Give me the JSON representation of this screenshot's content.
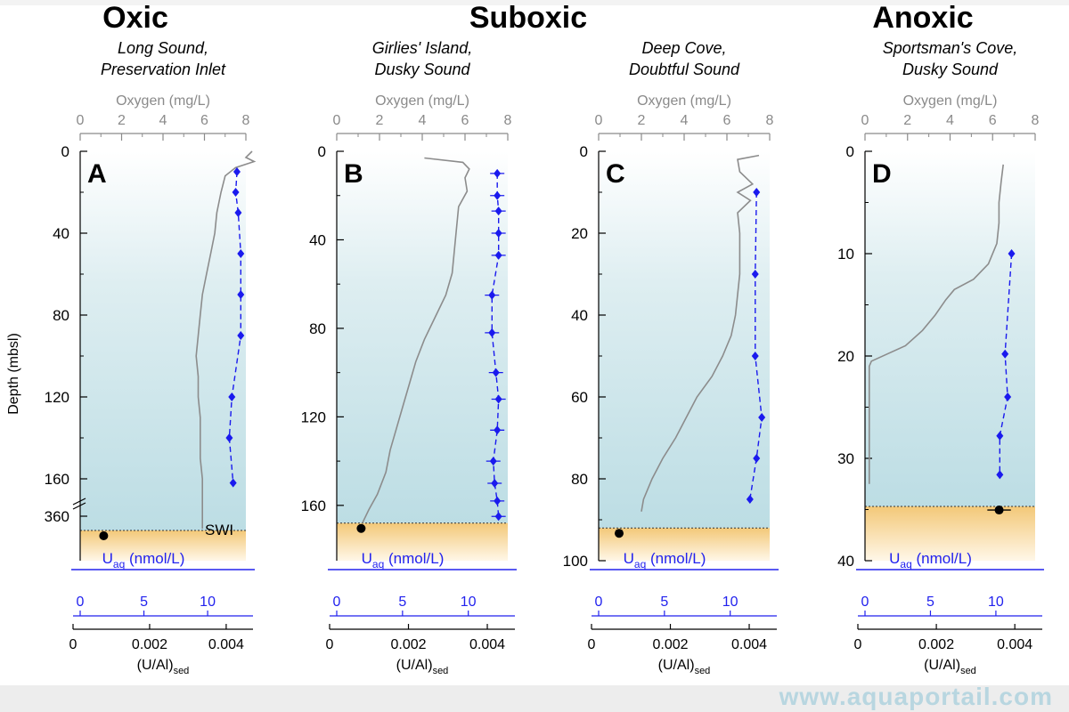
{
  "headings": {
    "oxic": "Oxic",
    "suboxic": "Suboxic",
    "anoxic": "Anoxic"
  },
  "depth_axis_label": "Depth (mbsl)",
  "swi_label": "SWI",
  "watermark": "www.aquaportail.com",
  "colors": {
    "water": "#c9e4ea",
    "sediment": "#f7d79a",
    "uranium": "#1a1aee",
    "oxygen": "#8c8c8c",
    "axis_grey": "#8a8a8a",
    "axis_blue": "#2222ee"
  },
  "chart_data": [
    {
      "panel": "A",
      "type": "line",
      "site": [
        "Long Sound,",
        "Preservation Inlet"
      ],
      "oxygen_axis": {
        "label": "Oxygen (mg/L)",
        "range": [
          0,
          8
        ],
        "ticks": [
          "0",
          "2",
          "4",
          "6",
          "8"
        ]
      },
      "depth_axis": {
        "range": [
          0,
          168
        ],
        "ticks": [
          "0",
          "40",
          "80",
          "120",
          "160"
        ],
        "break_tick": "360"
      },
      "uaq_axis": {
        "label": "U",
        "label_sub": "aq",
        "label_unit": " (nmol/L)",
        "range": [
          0,
          13
        ],
        "ticks": [
          "0",
          "5",
          "10"
        ]
      },
      "used_axis": {
        "label": "(U/Al)",
        "label_sub": "sed",
        "range": [
          0,
          0.0047
        ],
        "ticks": [
          "0",
          "0.002",
          "0.004"
        ]
      },
      "swi_shown": true,
      "oxygen_profile": {
        "depth": [
          0,
          3,
          5,
          8,
          12,
          20,
          30,
          40,
          50,
          60,
          70,
          80,
          90,
          100,
          110,
          120,
          130,
          140,
          150,
          160,
          165
        ],
        "oxygen": [
          8.3,
          8.0,
          8.4,
          7.5,
          7.0,
          6.8,
          6.6,
          6.5,
          6.3,
          6.1,
          5.9,
          5.8,
          5.7,
          5.6,
          5.7,
          5.7,
          5.8,
          5.8,
          5.8,
          5.9,
          5.9
        ]
      },
      "deep_oxygen": 5.9,
      "u_profile": {
        "depth": [
          10,
          20,
          30,
          50,
          70,
          90,
          120,
          140,
          162
        ],
        "u": [
          12.3,
          12.2,
          12.4,
          12.6,
          12.6,
          12.6,
          11.9,
          11.7,
          12.0
        ]
      },
      "sediment_point": 0.0008
    },
    {
      "panel": "B",
      "type": "line",
      "site": [
        "Girlies' Island,",
        "Dusky Sound"
      ],
      "oxygen_axis": {
        "label": "Oxygen (mg/L)",
        "range": [
          0,
          8
        ],
        "ticks": [
          "0",
          "2",
          "4",
          "6",
          "8"
        ]
      },
      "depth_axis": {
        "range": [
          0,
          185
        ],
        "ticks": [
          "0",
          "40",
          "80",
          "120",
          "160"
        ]
      },
      "uaq_axis": {
        "label": "U",
        "label_sub": "aq",
        "label_unit": " (nmol/L)",
        "range": [
          0,
          13
        ],
        "ticks": [
          "0",
          "5",
          "10"
        ]
      },
      "used_axis": {
        "label": "(U/Al)",
        "label_sub": "sed",
        "range": [
          0,
          0.0047
        ],
        "ticks": [
          "0",
          "0.002",
          "0.004"
        ]
      },
      "swi_depth": 168,
      "oxygen_profile": {
        "depth": [
          3,
          5,
          8,
          12,
          18,
          25,
          35,
          45,
          55,
          65,
          75,
          85,
          95,
          105,
          115,
          125,
          135,
          145,
          155,
          162,
          168
        ],
        "oxygen": [
          4.1,
          5.9,
          6.2,
          6.0,
          6.1,
          5.7,
          5.6,
          5.5,
          5.4,
          5.1,
          4.6,
          4.1,
          3.7,
          3.4,
          3.1,
          2.8,
          2.5,
          2.3,
          1.9,
          1.5,
          1.2
        ]
      },
      "u_profile": {
        "depth": [
          10,
          20,
          27,
          37,
          47,
          65,
          82,
          100,
          112,
          126,
          140,
          150,
          158,
          165
        ],
        "u": [
          12.2,
          12.2,
          12.3,
          12.3,
          12.3,
          11.8,
          11.8,
          12.1,
          12.3,
          12.2,
          11.9,
          12.0,
          12.2,
          12.3
        ]
      },
      "sediment_point": 0.0008
    },
    {
      "panel": "C",
      "type": "line",
      "site": [
        "Deep Cove,",
        "Doubtful Sound"
      ],
      "oxygen_axis": {
        "label": "Oxygen (mg/L)",
        "range": [
          0,
          8
        ],
        "ticks": [
          "0",
          "2",
          "4",
          "6",
          "8"
        ]
      },
      "depth_axis": {
        "range": [
          0,
          100
        ],
        "ticks": [
          "0",
          "20",
          "40",
          "60",
          "80",
          "100"
        ]
      },
      "uaq_axis": {
        "label": "U",
        "label_sub": "aq",
        "label_unit": " (nmol/L)",
        "range": [
          0,
          13
        ],
        "ticks": [
          "0",
          "5",
          "10"
        ]
      },
      "used_axis": {
        "label": "(U/Al)",
        "label_sub": "sed",
        "range": [
          0,
          0.0047
        ],
        "ticks": [
          "0",
          "0.002",
          "0.004"
        ]
      },
      "swi_depth": 92,
      "oxygen_profile": {
        "depth": [
          1,
          2,
          5,
          8,
          10,
          12,
          15,
          20,
          25,
          30,
          35,
          40,
          45,
          50,
          55,
          60,
          65,
          70,
          75,
          80,
          85,
          88
        ],
        "oxygen": [
          7.5,
          6.5,
          6.6,
          7.2,
          6.5,
          7.1,
          6.5,
          6.6,
          6.6,
          6.6,
          6.5,
          6.4,
          6.2,
          5.8,
          5.3,
          4.6,
          4.1,
          3.6,
          3.0,
          2.5,
          2.1,
          2.0
        ]
      },
      "u_profile": {
        "depth": [
          10,
          30,
          50,
          65,
          75,
          85
        ],
        "u": [
          12.0,
          11.9,
          11.9,
          12.4,
          12.0,
          11.5
        ]
      },
      "sediment_point": 0.0007
    },
    {
      "panel": "D",
      "type": "line",
      "site": [
        "Sportsman's Cove,",
        "Dusky Sound"
      ],
      "oxygen_axis": {
        "label": "Oxygen (mg/L)",
        "range": [
          0,
          8
        ],
        "ticks": [
          "0",
          "2",
          "4",
          "6",
          "8"
        ]
      },
      "depth_axis": {
        "range": [
          0,
          40
        ],
        "ticks": [
          "0",
          "10",
          "20",
          "30",
          "40"
        ]
      },
      "uaq_axis": {
        "label": "U",
        "label_sub": "aq",
        "label_unit": " (nmol/L)",
        "range": [
          0,
          13
        ],
        "ticks": [
          "0",
          "5",
          "10"
        ]
      },
      "used_axis": {
        "label": "(U/Al)",
        "label_sub": "sed",
        "range": [
          0,
          0.0047
        ],
        "ticks": [
          "0",
          "0.002",
          "0.004"
        ]
      },
      "swi_depth": 34.7,
      "oxygen_profile": {
        "depth": [
          1.3,
          3,
          5,
          7,
          9,
          11,
          12.5,
          13.5,
          14.5,
          16,
          17.5,
          19,
          20.5,
          21,
          32.5
        ],
        "oxygen": [
          6.5,
          6.4,
          6.3,
          6.3,
          6.2,
          5.8,
          5.1,
          4.2,
          3.8,
          3.3,
          2.7,
          1.9,
          0.3,
          0.2,
          0.2
        ]
      },
      "u_profile": {
        "depth": [
          10,
          19.8,
          24,
          27.8,
          31.6
        ],
        "u": [
          11.2,
          10.7,
          10.9,
          10.3,
          10.3
        ]
      },
      "sediment_point": 0.0036,
      "sediment_error": 0.0003
    }
  ]
}
